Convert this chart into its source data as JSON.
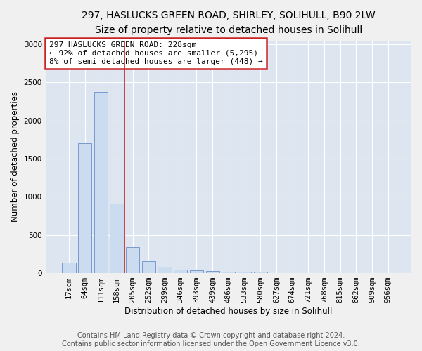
{
  "title": "297, HASLUCKS GREEN ROAD, SHIRLEY, SOLIHULL, B90 2LW",
  "subtitle": "Size of property relative to detached houses in Solihull",
  "xlabel": "Distribution of detached houses by size in Solihull",
  "ylabel": "Number of detached properties",
  "footer_line1": "Contains HM Land Registry data © Crown copyright and database right 2024.",
  "footer_line2": "Contains public sector information licensed under the Open Government Licence v3.0.",
  "categories": [
    "17sqm",
    "64sqm",
    "111sqm",
    "158sqm",
    "205sqm",
    "252sqm",
    "299sqm",
    "346sqm",
    "393sqm",
    "439sqm",
    "486sqm",
    "533sqm",
    "580sqm",
    "627sqm",
    "674sqm",
    "721sqm",
    "768sqm",
    "815sqm",
    "862sqm",
    "909sqm",
    "956sqm"
  ],
  "values": [
    140,
    1700,
    2380,
    910,
    340,
    155,
    80,
    48,
    35,
    28,
    20,
    18,
    20,
    0,
    0,
    0,
    0,
    0,
    0,
    0,
    0
  ],
  "bar_color": "#ccdcf0",
  "bar_edge_color": "#7799cc",
  "vline_x": 3.5,
  "vline_color": "#cc2222",
  "annotation_text": "297 HASLUCKS GREEN ROAD: 228sqm\n← 92% of detached houses are smaller (5,295)\n8% of semi-detached houses are larger (448) →",
  "annotation_box_color": "#ffffff",
  "annotation_box_edge": "#cc2222",
  "ylim": [
    0,
    3050
  ],
  "yticks": [
    0,
    500,
    1000,
    1500,
    2000,
    2500,
    3000
  ],
  "fig_bg": "#f0f0f0",
  "axes_bg": "#dde6f0",
  "title_fontsize": 10,
  "subtitle_fontsize": 9,
  "axis_label_fontsize": 8.5,
  "tick_fontsize": 7.5,
  "annotation_fontsize": 8,
  "footer_fontsize": 7
}
